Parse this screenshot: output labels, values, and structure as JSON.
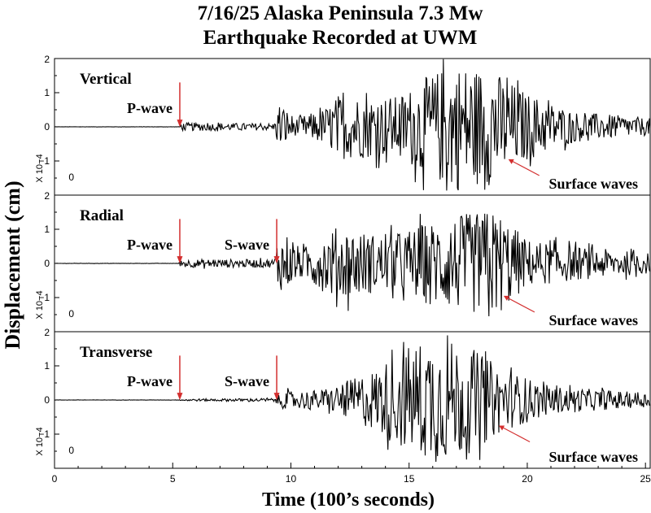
{
  "chart_data": {
    "type": "line",
    "title": [
      "7/16/25 Alaska Peninsula 7.3 Mw",
      "Earthquake Recorded at UWM"
    ],
    "xlabel": "Time (100’s seconds)",
    "ylabel": "Displacement (cm)",
    "xlim": [
      0,
      25.2
    ],
    "x_ticks": [
      0,
      5,
      10,
      15,
      20,
      25
    ],
    "ylim": [
      -2,
      2
    ],
    "y_ticks": [
      2,
      1,
      0,
      -1
    ],
    "y_tick_labels": [
      "2",
      "1",
      "0",
      "−1"
    ],
    "y_scale_label": "X 10−4",
    "scale_zero_label": "0",
    "line_color": "#000000",
    "marker_color": "#d32f2f",
    "panels": [
      {
        "label": "Vertical",
        "annotations": [
          {
            "text": "P-wave",
            "x": 5.3
          },
          {
            "text": "Surface waves",
            "arrow_to": [
              19.2,
              -0.95
            ]
          }
        ],
        "envelope": [
          {
            "x": 0,
            "amp": 0.005
          },
          {
            "x": 5.25,
            "amp": 0.005
          },
          {
            "x": 5.35,
            "amp": 0.12
          },
          {
            "x": 9.3,
            "amp": 0.1
          },
          {
            "x": 9.5,
            "amp": 0.75
          },
          {
            "x": 10.2,
            "amp": 0.25
          },
          {
            "x": 11.5,
            "amp": 0.55
          },
          {
            "x": 12.0,
            "amp": 0.95
          },
          {
            "x": 14.5,
            "amp": 0.9
          },
          {
            "x": 16.0,
            "amp": 1.6
          },
          {
            "x": 17.0,
            "amp": 1.9
          },
          {
            "x": 18.5,
            "amp": 1.7
          },
          {
            "x": 20.0,
            "amp": 1.0
          },
          {
            "x": 22.0,
            "amp": 0.45
          },
          {
            "x": 25.2,
            "amp": 0.25
          }
        ]
      },
      {
        "label": "Radial",
        "annotations": [
          {
            "text": "P-wave",
            "x": 5.3
          },
          {
            "text": "S-wave",
            "x": 9.4
          },
          {
            "text": "Surface waves",
            "arrow_to": [
              19.0,
              -0.95
            ]
          }
        ],
        "envelope": [
          {
            "x": 0,
            "amp": 0.005
          },
          {
            "x": 5.25,
            "amp": 0.005
          },
          {
            "x": 5.35,
            "amp": 0.12
          },
          {
            "x": 9.3,
            "amp": 0.12
          },
          {
            "x": 9.45,
            "amp": 0.85
          },
          {
            "x": 10.5,
            "amp": 0.45
          },
          {
            "x": 12.0,
            "amp": 1.1
          },
          {
            "x": 14.0,
            "amp": 0.8
          },
          {
            "x": 16.5,
            "amp": 1.35
          },
          {
            "x": 18.7,
            "amp": 1.6
          },
          {
            "x": 20.0,
            "amp": 0.7
          },
          {
            "x": 22.0,
            "amp": 0.5
          },
          {
            "x": 25.2,
            "amp": 0.3
          }
        ]
      },
      {
        "label": "Transverse",
        "annotations": [
          {
            "text": "P-wave",
            "x": 5.3
          },
          {
            "text": "S-wave",
            "x": 9.4
          },
          {
            "text": "Surface waves",
            "arrow_to": [
              18.8,
              -0.75
            ]
          }
        ],
        "envelope": [
          {
            "x": 0,
            "amp": 0.005
          },
          {
            "x": 5.25,
            "amp": 0.005
          },
          {
            "x": 5.35,
            "amp": 0.03
          },
          {
            "x": 9.3,
            "amp": 0.05
          },
          {
            "x": 9.5,
            "amp": 0.25
          },
          {
            "x": 11.5,
            "amp": 0.3
          },
          {
            "x": 13.5,
            "amp": 0.9
          },
          {
            "x": 15.0,
            "amp": 1.6
          },
          {
            "x": 16.0,
            "amp": 1.9
          },
          {
            "x": 17.5,
            "amp": 1.6
          },
          {
            "x": 19.0,
            "amp": 0.9
          },
          {
            "x": 21.0,
            "amp": 0.4
          },
          {
            "x": 25.2,
            "amp": 0.2
          }
        ]
      }
    ]
  }
}
